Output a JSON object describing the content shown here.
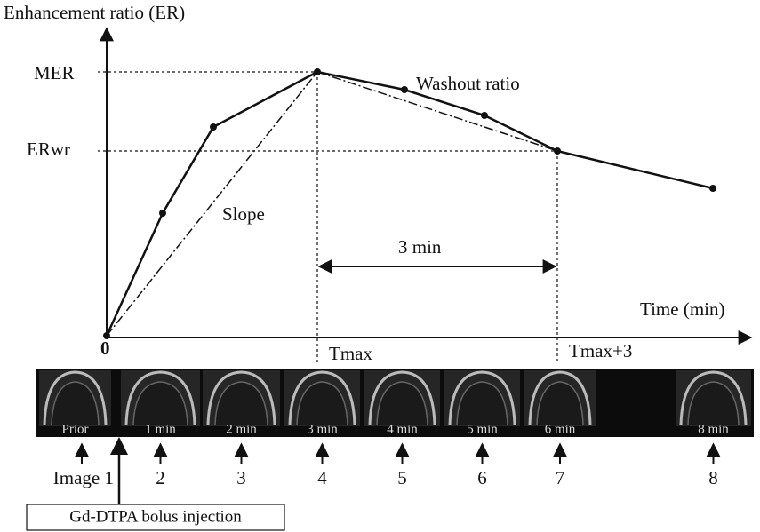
{
  "axes": {
    "y_label": "Enhancement ratio (ER)",
    "x_label": "Time (min)",
    "origin": "0"
  },
  "levels": {
    "mer": "MER",
    "erwr": "ERwr"
  },
  "annotations": {
    "washout": "Washout ratio",
    "slope": "Slope",
    "interval": "3 min",
    "tmax": "Tmax",
    "tmax3": "Tmax+3"
  },
  "images": [
    {
      "label": "Prior",
      "number": "Image 1"
    },
    {
      "label": "1 min",
      "number": "2"
    },
    {
      "label": "2 min",
      "number": "3"
    },
    {
      "label": "3 min",
      "number": "4"
    },
    {
      "label": "4 min",
      "number": "5"
    },
    {
      "label": "5 min",
      "number": "6"
    },
    {
      "label": "6 min",
      "number": "7"
    },
    {
      "label": "8 min",
      "number": "8"
    }
  ],
  "injection": "Gd-DTPA bolus injection"
}
